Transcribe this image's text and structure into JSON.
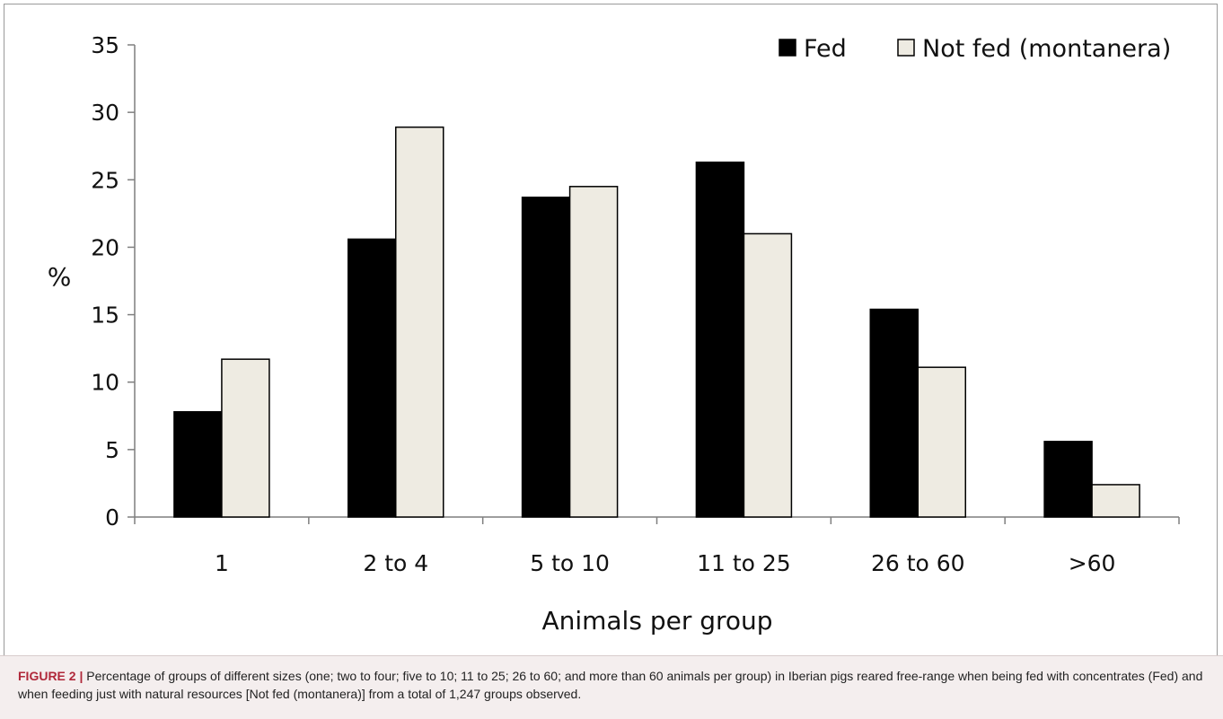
{
  "chart_data": {
    "type": "bar",
    "categories": [
      "1",
      "2 to 4",
      "5 to 10",
      "11 to 25",
      "26 to 60",
      ">60"
    ],
    "series": [
      {
        "name": "Fed",
        "color": "#000000",
        "values": [
          7.8,
          20.6,
          23.7,
          26.3,
          15.4,
          5.6
        ]
      },
      {
        "name": "Not fed (montanera)",
        "color": "#eeebe2",
        "values": [
          11.7,
          28.9,
          24.5,
          21.0,
          11.1,
          2.4
        ]
      }
    ],
    "xlabel": "Animals per group",
    "ylabel": "%",
    "ylim": [
      0,
      35
    ],
    "yticks": [
      0,
      5,
      10,
      15,
      20,
      25,
      30,
      35
    ],
    "grid": false,
    "legend_position": "top-right"
  },
  "caption": {
    "label": "FIGURE 2 |",
    "text": "Percentage of groups of different sizes (one; two to four; five to 10; 11 to 25; 26 to 60; and more than 60 animals per group) in Iberian pigs reared free-range when being fed with concentrates (Fed) and when feeding just with natural resources [Not fed (montanera)] from a total of 1,247 groups observed."
  }
}
